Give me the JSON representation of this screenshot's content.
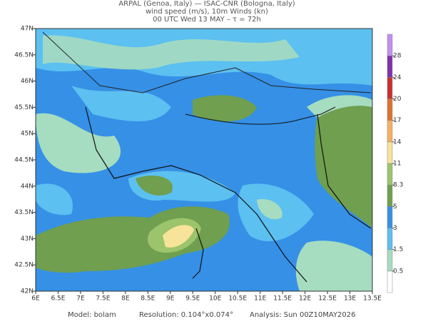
{
  "header": {
    "line1": "ARPAL (Genoa, Italy)  —  ISAC-CNR (Bologna, Italy)",
    "line2": "wind speed (m/s), 10m Winds (kn)",
    "line3": "00 UTC Wed 13 MAY  –  τ = 72h"
  },
  "map": {
    "xlim": [
      6,
      13.5
    ],
    "ylim": [
      42,
      47
    ],
    "xticks": [
      {
        "value": 6,
        "label": "6E"
      },
      {
        "value": 6.5,
        "label": "6.5E"
      },
      {
        "value": 7,
        "label": "7E"
      },
      {
        "value": 7.5,
        "label": "7.5E"
      },
      {
        "value": 8,
        "label": "8E"
      },
      {
        "value": 8.5,
        "label": "8.5E"
      },
      {
        "value": 9,
        "label": "9E"
      },
      {
        "value": 9.5,
        "label": "9.5E"
      },
      {
        "value": 10,
        "label": "10E"
      },
      {
        "value": 10.5,
        "label": "10.5E"
      },
      {
        "value": 11,
        "label": "11E"
      },
      {
        "value": 11.5,
        "label": "11.5E"
      },
      {
        "value": 12,
        "label": "12E"
      },
      {
        "value": 12.5,
        "label": "12.5E"
      },
      {
        "value": 13,
        "label": "13E"
      },
      {
        "value": 13.5,
        "label": "13.5E"
      }
    ],
    "yticks": [
      {
        "value": 42,
        "label": "42N"
      },
      {
        "value": 42.5,
        "label": "42.5N"
      },
      {
        "value": 43,
        "label": "43N"
      },
      {
        "value": 43.5,
        "label": "43.5N"
      },
      {
        "value": 44,
        "label": "44N"
      },
      {
        "value": 44.5,
        "label": "44.5N"
      },
      {
        "value": 45,
        "label": "45N"
      },
      {
        "value": 45.5,
        "label": "45.5N"
      },
      {
        "value": 46,
        "label": "46N"
      },
      {
        "value": 46.5,
        "label": "46.5N"
      },
      {
        "value": 47,
        "label": "47N"
      }
    ]
  },
  "colorbar": {
    "levels": [
      0.5,
      1.5,
      3,
      5,
      8.3,
      11,
      14,
      17,
      20,
      24,
      28
    ],
    "colors": [
      "#ffffff",
      "#a6dcc0",
      "#5cc0f0",
      "#3590e6",
      "#6f9f4f",
      "#9cc46c",
      "#f7e39a",
      "#f5b060",
      "#e07030",
      "#c83030",
      "#8030b0",
      "#c090f0"
    ]
  },
  "footer": {
    "model": "Model: bolam",
    "resolution": "Resolution: 0.104°x0.074°",
    "analysis": "Analysis: Sun 00Z10MAY2026"
  }
}
